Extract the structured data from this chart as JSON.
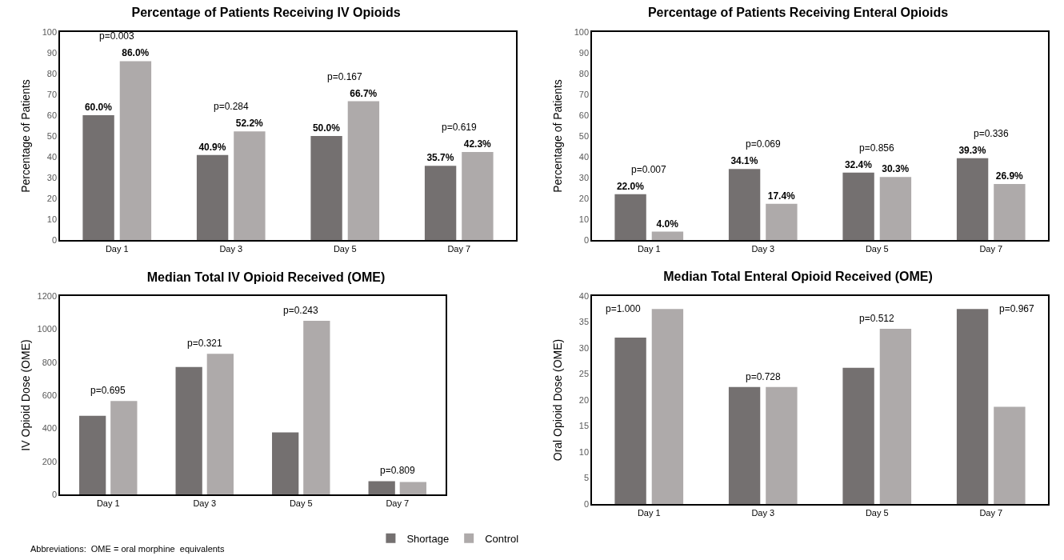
{
  "chart_data": [
    {
      "type": "bar",
      "title": "Percentage of Patients Receiving IV Opioids",
      "ylabel": "Percentage of Patients",
      "categories": [
        "Day 1",
        "Day 3",
        "Day 5",
        "Day 7"
      ],
      "series": [
        {
          "color": "#747070",
          "values": [
            60.0,
            40.9,
            50.0,
            35.7
          ],
          "value_labels": [
            "60.0%",
            "40.9%",
            "50.0%",
            "35.7%"
          ]
        },
        {
          "color": "#aeaaaa",
          "values": [
            86.0,
            52.2,
            66.7,
            42.3
          ],
          "value_labels": [
            "86.0%",
            "52.2%",
            "66.7%",
            "42.3%"
          ]
        }
      ],
      "ylim": [
        0,
        100
      ],
      "yticks": [
        0,
        10,
        20,
        30,
        40,
        50,
        60,
        70,
        80,
        90,
        100
      ],
      "grid": false,
      "legend": false,
      "annotations": [
        "p=0.003",
        "p=0.284",
        "p=0.167",
        "p=0.619"
      ]
    },
    {
      "type": "bar",
      "title": "Percentage of Patients Receiving Enteral Opioids",
      "ylabel": "Percentage of Patients",
      "categories": [
        "Day 1",
        "Day 3",
        "Day 5",
        "Day 7"
      ],
      "series": [
        {
          "color": "#747070",
          "values": [
            22.0,
            34.1,
            32.4,
            39.3
          ],
          "value_labels": [
            "22.0%",
            "34.1%",
            "32.4%",
            "39.3%"
          ]
        },
        {
          "color": "#aeaaaa",
          "values": [
            4.0,
            17.4,
            30.3,
            26.9
          ],
          "value_labels": [
            "4.0%",
            "17.4%",
            "30.3%",
            "26.9%"
          ]
        }
      ],
      "ylim": [
        0,
        100
      ],
      "yticks": [
        0,
        10,
        20,
        30,
        40,
        50,
        60,
        70,
        80,
        90,
        100
      ],
      "grid": false,
      "legend": false,
      "annotations": [
        "p=0.007",
        "p=0.069",
        "p=0.856",
        "p=0.336"
      ]
    },
    {
      "type": "bar",
      "title": "Median Total IV Opioid Received (OME)",
      "ylabel": "IV Opioid Dose (OME)",
      "categories": [
        "Day 1",
        "Day 3",
        "Day 5",
        "Day 7"
      ],
      "series": [
        {
          "name": "Shortage",
          "color": "#747070",
          "values": [
            475,
            770,
            375,
            80
          ]
        },
        {
          "name": "Control",
          "color": "#aeaaaa",
          "values": [
            565,
            850,
            1050,
            75
          ]
        }
      ],
      "ylim": [
        0,
        1200
      ],
      "yticks": [
        0,
        200,
        400,
        600,
        800,
        1000,
        1200
      ],
      "grid": false,
      "legend": "bottom right",
      "annotations": [
        "p=0.695",
        "p=0.321",
        "p=0.243",
        "p=0.809",
        "Abbreviations:  OME = oral morphine  equivalents"
      ]
    },
    {
      "type": "bar",
      "title": "Median Total Enteral Opioid Received (OME)",
      "ylabel": "Oral Opioid Dose (OME)",
      "categories": [
        "Day 1",
        "Day 3",
        "Day 5",
        "Day 7"
      ],
      "series": [
        {
          "color": "#747070",
          "values": [
            32.0,
            22.5,
            26.2,
            37.5
          ]
        },
        {
          "color": "#aeaaaa",
          "values": [
            37.5,
            22.5,
            33.7,
            18.7
          ]
        }
      ],
      "ylim": [
        0,
        40
      ],
      "yticks": [
        0,
        5,
        10,
        15,
        20,
        25,
        30,
        35,
        40
      ],
      "grid": false,
      "legend": false,
      "annotations": [
        "p=1.000",
        "p=0.728",
        "p=0.512",
        "p=0.967"
      ]
    }
  ]
}
